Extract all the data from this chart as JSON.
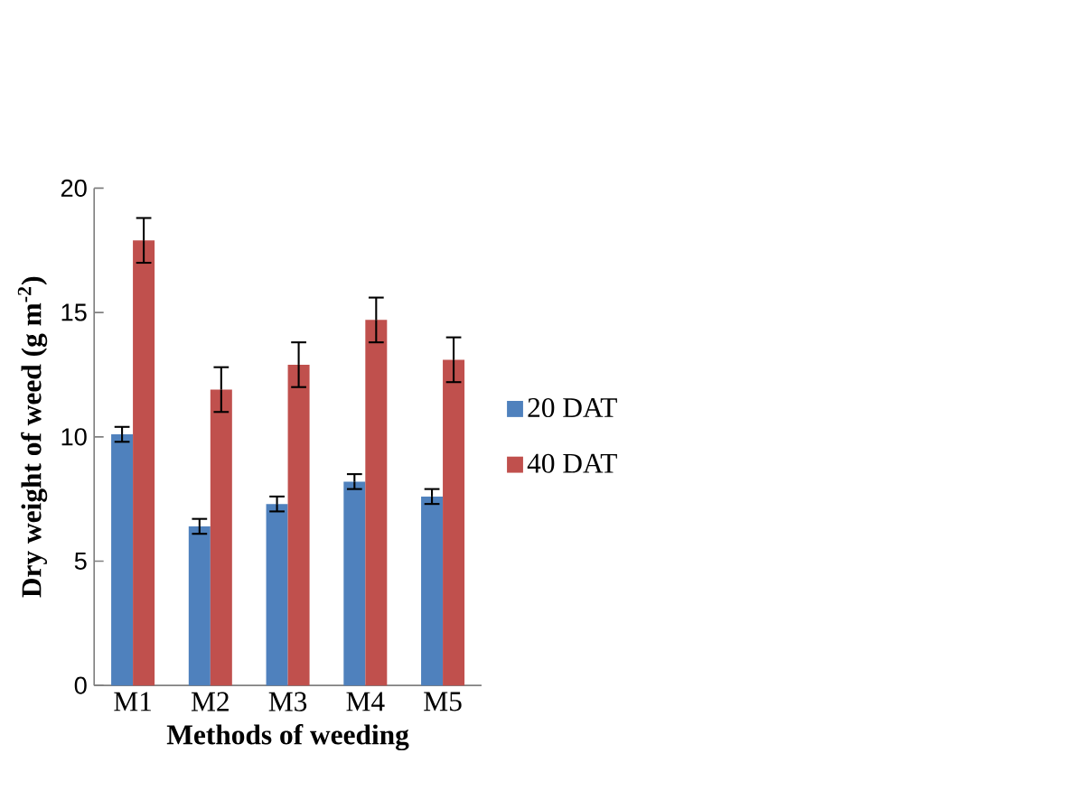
{
  "chart_data": {
    "type": "bar",
    "xlabel": "Methods of weeding",
    "ylabel": "Dry weight of weed (g m$^{-2}$)",
    "categories": [
      "M1",
      "M2",
      "M3",
      "M4",
      "M5"
    ],
    "series": [
      {
        "name": "20 DAT",
        "color": "#4f81bd",
        "values": [
          10.1,
          6.4,
          7.3,
          8.2,
          7.6
        ],
        "errors": [
          0.3,
          0.3,
          0.3,
          0.3,
          0.3
        ]
      },
      {
        "name": "40 DAT",
        "color": "#c0504d",
        "values": [
          17.9,
          11.9,
          12.9,
          14.7,
          13.1
        ],
        "errors": [
          0.9,
          0.9,
          0.9,
          0.9,
          0.9
        ]
      }
    ],
    "ylim": [
      0,
      20
    ],
    "yticks": [
      0,
      5,
      10,
      15,
      20
    ],
    "legend": "right",
    "grid": false
  }
}
